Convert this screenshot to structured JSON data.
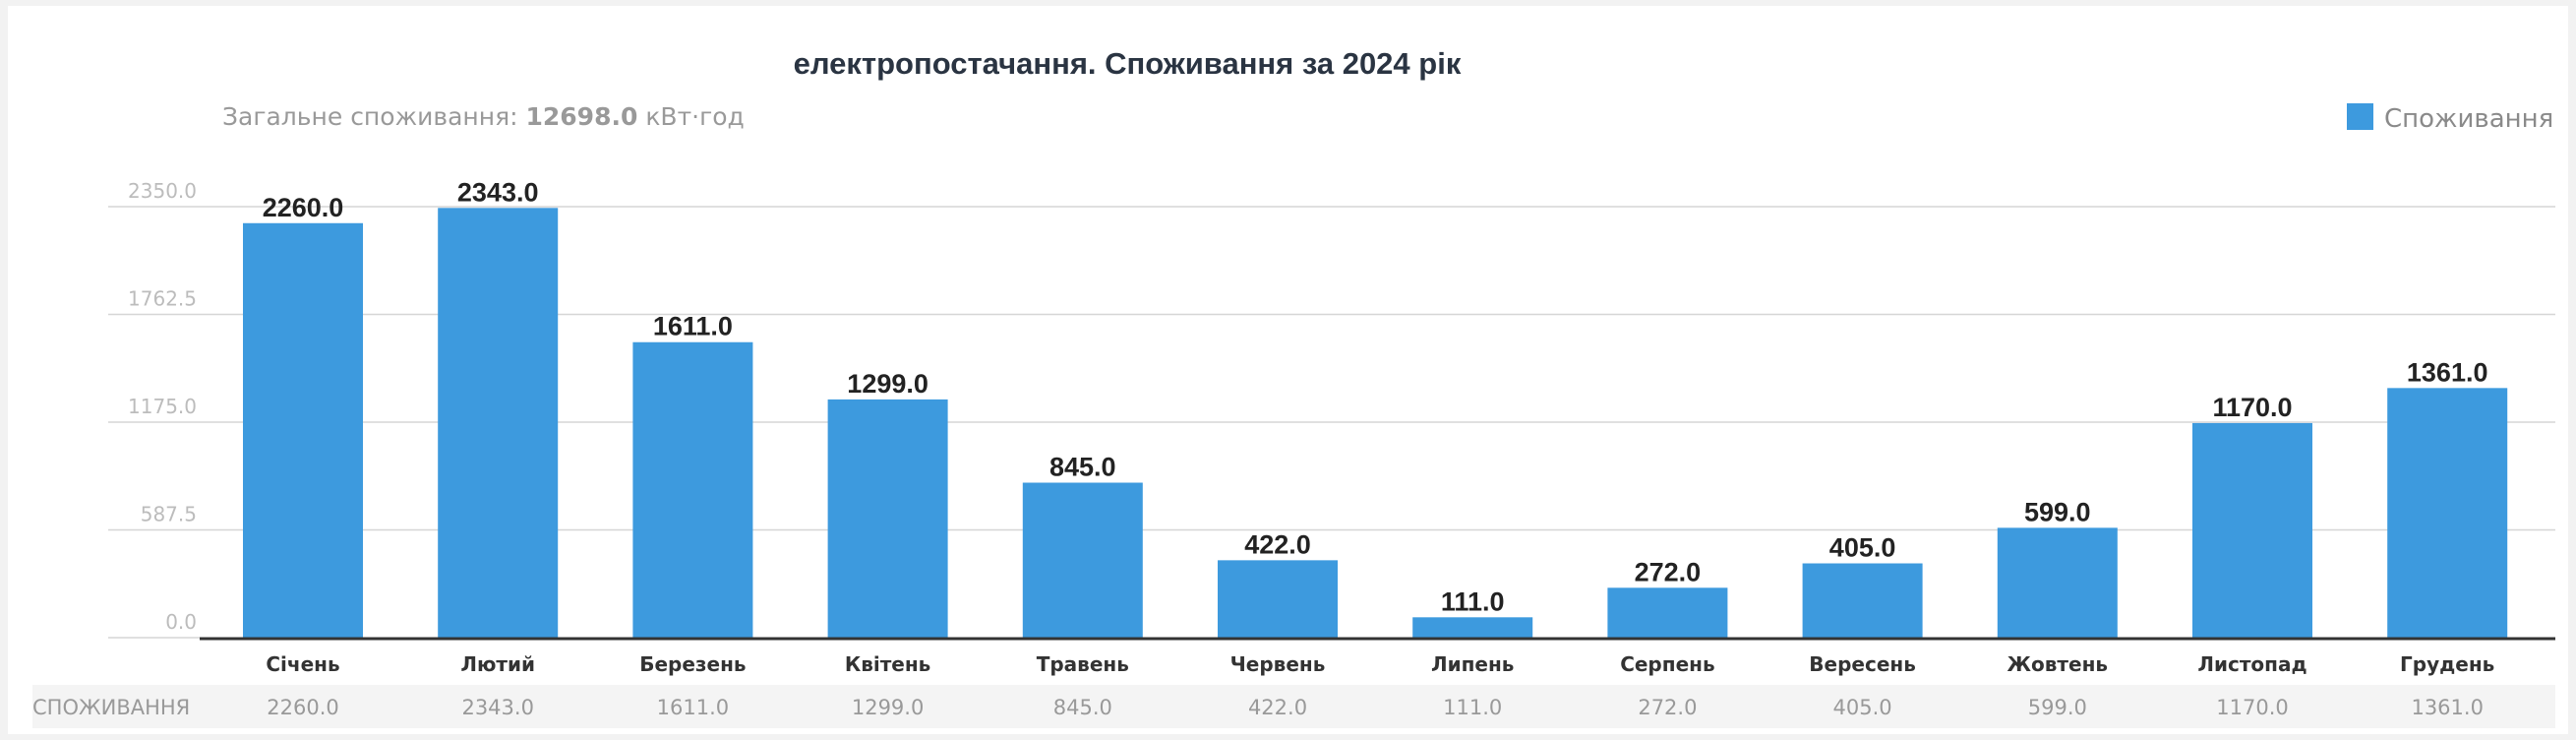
{
  "chart_data": {
    "type": "bar",
    "title": "електропостачання. Споживання за 2024 рік",
    "subtitle": {
      "prefix": "Загальне споживання: ",
      "value": "12698.0",
      "unit": " кВт·год"
    },
    "categories": [
      "Січень",
      "Лютий",
      "Березень",
      "Квітень",
      "Травень",
      "Червень",
      "Липень",
      "Серпень",
      "Вересень",
      "Жовтень",
      "Листопад",
      "Грудень"
    ],
    "series": [
      {
        "name": "Споживання",
        "color": "#3d9ade",
        "values": [
          2260.0,
          2343.0,
          1611.0,
          1299.0,
          845.0,
          422.0,
          111.0,
          272.0,
          405.0,
          599.0,
          1170.0,
          1361.0
        ]
      }
    ],
    "yticks": [
      "0.0",
      "587.5",
      "1175.0",
      "1762.5",
      "2350.0"
    ],
    "ylim": [
      0,
      2350
    ],
    "grid": true,
    "legend": {
      "position": "top-right",
      "label": "Споживання"
    },
    "table": {
      "row_label": "СПОЖИВАННЯ",
      "values": [
        "2260.0",
        "2343.0",
        "1611.0",
        "1299.0",
        "845.0",
        "422.0",
        "111.0",
        "272.0",
        "405.0",
        "599.0",
        "1170.0",
        "1361.0"
      ]
    }
  }
}
